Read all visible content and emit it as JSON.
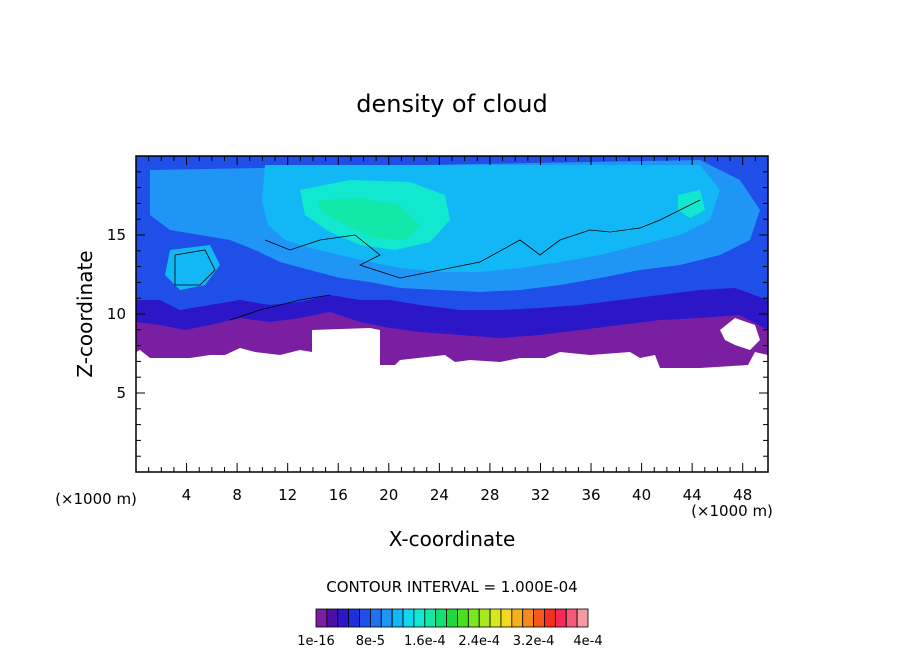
{
  "chart_data": {
    "type": "heatmap",
    "title": "density of cloud",
    "xlabel": "X-coordinate",
    "ylabel": "Z-coordinate",
    "x_unit_label": "(×1000 m)",
    "x_unit_label_right": "(×1000 m)",
    "xlim": [
      0,
      50
    ],
    "ylim": [
      0,
      20
    ],
    "x_ticks": [
      4,
      8,
      12,
      16,
      20,
      24,
      28,
      32,
      36,
      40,
      44,
      48
    ],
    "x_tick_labels": [
      "4",
      "8",
      "12",
      "16",
      "20",
      "24",
      "28",
      "32",
      "36",
      "40",
      "44",
      "48"
    ],
    "y_ticks": [
      5,
      10,
      15
    ],
    "y_tick_labels": [
      "5",
      "10",
      "15"
    ],
    "contour_interval_label": "CONTOUR INTERVAL = 1.000E-04",
    "colorbar": {
      "colors": [
        "#7b1fa2",
        "#4b0fa8",
        "#2b16c8",
        "#1f2fe0",
        "#1f4fe8",
        "#1f72f0",
        "#1f95f5",
        "#12b8f5",
        "#0fd8f0",
        "#12e8d0",
        "#12e8a8",
        "#12e070",
        "#1fd83c",
        "#4be01f",
        "#7be81f",
        "#a8e81f",
        "#d8e81f",
        "#f5d81f",
        "#f5b01f",
        "#f5881f",
        "#f5581f",
        "#f5301f",
        "#f5285a",
        "#f55a7b",
        "#f59aa0"
      ],
      "tick_labels": [
        "1e-16",
        "8e-5",
        "1.6e-4",
        "2.4e-4",
        "3.2e-4",
        "4e-4"
      ]
    },
    "cloud_layer": {
      "base_z_km": 7,
      "top_z_km": 20,
      "max_density_region": {
        "x_km": [
          14,
          22
        ],
        "z_km": [
          15.5,
          17.5
        ]
      }
    }
  }
}
